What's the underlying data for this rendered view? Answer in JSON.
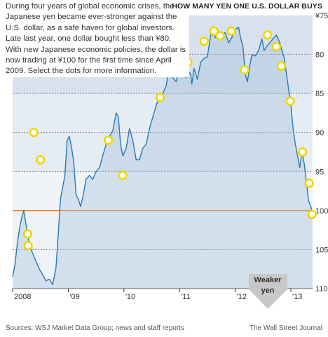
{
  "intro": "During four years of global economic crises, the Japanese yen became ever-stronger against the U.S. dollar, as a safe haven for global investors. Late last year, one dollar bought less than ¥80. With new Japanese economic policies, the dollar is now trading at ¥100 for the first time since April 2009. Select the dots for more information.",
  "footer": {
    "source": "Sources: WSJ Market Data Group; news and staff reports",
    "credit": "The Wall Street Journal"
  },
  "callout": {
    "line1": "Weaker",
    "line2": "yen"
  },
  "colors": {
    "line": "#2a7ab0",
    "fill_top": "#b7cbe0",
    "fill_mid": "#cfdce9",
    "fill_bottom": "#e2e9f1",
    "highlight": "#f07c1e",
    "dot": "#f2d600"
  },
  "chart_data": {
    "type": "line",
    "title": "HOW MANY YEN ONE U.S. DOLLAR BUYS",
    "xlabel": "",
    "ylabel": "",
    "y_inverted": true,
    "ylim": [
      75,
      110
    ],
    "y_ticks": [
      "¥75",
      "80",
      "85",
      "90",
      "95",
      "100",
      "105",
      "110"
    ],
    "highlight_level": 100,
    "x_ticks": [
      "2008",
      "'09",
      "'10",
      "'11",
      "'12",
      "'13"
    ],
    "xlim": [
      2008.0,
      2013.39
    ],
    "series": [
      {
        "x": [
          2008.0,
          2008.04,
          2008.08,
          2008.12,
          2008.16,
          2008.2,
          2008.24,
          2008.3,
          2008.36,
          2008.42,
          2008.48,
          2008.54,
          2008.6,
          2008.66,
          2008.72,
          2008.78,
          2008.82,
          2008.86,
          2008.9,
          2008.94,
          2008.98,
          2009.02,
          2009.06,
          2009.1,
          2009.14,
          2009.18,
          2009.22,
          2009.26,
          2009.32,
          2009.38,
          2009.44,
          2009.5,
          2009.56,
          2009.62,
          2009.68,
          2009.74,
          2009.8,
          2009.86,
          2009.9,
          2009.94,
          2009.98,
          2010.04,
          2010.1,
          2010.16,
          2010.22,
          2010.28,
          2010.34,
          2010.4,
          2010.46,
          2010.52,
          2010.58,
          2010.64,
          2010.7,
          2010.76,
          2010.82,
          2010.88,
          2010.94,
          2011.0,
          2011.06,
          2011.12,
          2011.16,
          2011.2,
          2011.22,
          2011.26,
          2011.32,
          2011.38,
          2011.44,
          2011.5,
          2011.56,
          2011.6,
          2011.64,
          2011.7,
          2011.76,
          2011.82,
          2011.88,
          2011.94,
          2012.0,
          2012.06,
          2012.1,
          2012.14,
          2012.18,
          2012.22,
          2012.26,
          2012.3,
          2012.36,
          2012.42,
          2012.48,
          2012.52,
          2012.56,
          2012.62,
          2012.68,
          2012.74,
          2012.8,
          2012.84,
          2012.88,
          2012.92,
          2012.96,
          2013.0,
          2013.04,
          2013.08,
          2013.12,
          2013.16,
          2013.2,
          2013.24,
          2013.28,
          2013.32,
          2013.36,
          2013.39
        ],
        "y": [
          108.5,
          107.0,
          104.5,
          102.5,
          101.0,
          100.0,
          101.8,
          104.3,
          105.5,
          106.5,
          107.5,
          108.2,
          109.0,
          108.8,
          109.5,
          107.3,
          103.0,
          98.5,
          97.0,
          95.5,
          91.0,
          90.5,
          92.0,
          93.8,
          98.0,
          98.5,
          99.5,
          98.3,
          96.0,
          95.5,
          96.0,
          95.0,
          94.5,
          93.0,
          91.5,
          90.5,
          89.8,
          87.5,
          88.0,
          91.5,
          93.0,
          92.0,
          89.5,
          91.0,
          93.5,
          93.5,
          92.0,
          91.5,
          89.5,
          88.0,
          86.5,
          85.5,
          85.0,
          84.0,
          81.3,
          83.0,
          83.5,
          81.2,
          82.5,
          83.0,
          82.2,
          82.5,
          83.8,
          81.8,
          83.2,
          81.0,
          80.5,
          80.3,
          77.5,
          76.5,
          77.8,
          78.0,
          77.5,
          77.2,
          78.5,
          77.8,
          76.8,
          76.5,
          78.0,
          79.0,
          82.5,
          83.5,
          81.5,
          80.0,
          80.2,
          79.5,
          78.0,
          79.5,
          79.0,
          78.5,
          78.0,
          77.5,
          78.5,
          79.5,
          80.5,
          82.5,
          84.5,
          86.5,
          89.5,
          91.5,
          93.0,
          94.5,
          92.5,
          94.0,
          96.5,
          98.8,
          99.5,
          100.5
        ]
      }
    ],
    "dots": [
      {
        "x": 2008.27,
        "y": 103.0
      },
      {
        "x": 2008.28,
        "y": 104.5
      },
      {
        "x": 2008.38,
        "y": 90.0
      },
      {
        "x": 2008.5,
        "y": 93.5
      },
      {
        "x": 2009.72,
        "y": 91.0
      },
      {
        "x": 2009.98,
        "y": 95.5
      },
      {
        "x": 2010.65,
        "y": 85.5
      },
      {
        "x": 2010.73,
        "y": 81.3
      },
      {
        "x": 2010.8,
        "y": 80.8
      },
      {
        "x": 2010.88,
        "y": 78.0
      },
      {
        "x": 2011.04,
        "y": 79.5
      },
      {
        "x": 2011.15,
        "y": 81.0
      },
      {
        "x": 2011.44,
        "y": 78.3
      },
      {
        "x": 2011.62,
        "y": 77.0
      },
      {
        "x": 2011.73,
        "y": 77.6
      },
      {
        "x": 2011.93,
        "y": 77.0
      },
      {
        "x": 2012.17,
        "y": 82.0
      },
      {
        "x": 2012.58,
        "y": 77.5
      },
      {
        "x": 2012.74,
        "y": 79.0
      },
      {
        "x": 2012.83,
        "y": 81.5
      },
      {
        "x": 2012.99,
        "y": 86.0
      },
      {
        "x": 2013.21,
        "y": 92.5
      },
      {
        "x": 2013.33,
        "y": 96.5
      },
      {
        "x": 2013.38,
        "y": 100.5
      }
    ]
  }
}
